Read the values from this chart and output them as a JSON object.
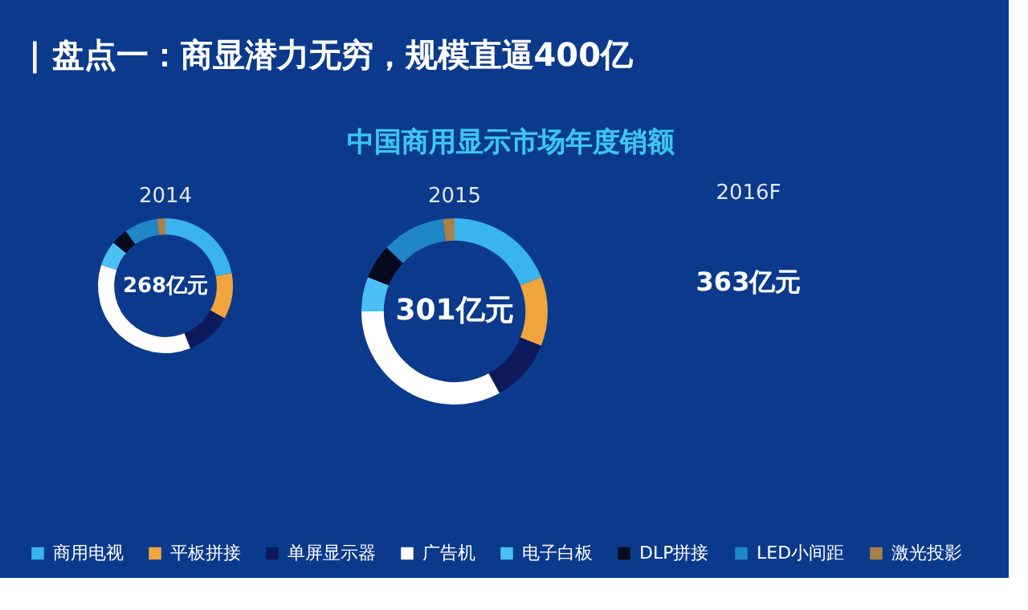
{
  "chart_data": [
    {
      "type": "other",
      "title": "| 盘点一：商显潜力无穷，规模直逼400亿",
      "subtitle": "中国商用显示市场年度销额"
    },
    {
      "type": "donut",
      "annotations": [
        "268亿元",
        "301亿元"
      ],
      "legend": "bottom",
      "categories": [
        "商用电视",
        "平板拼接",
        "单屏显示器",
        "广告机",
        "电子白板",
        "DLP拼接",
        "LED小间距",
        "激光投影"
      ],
      "colors": [
        "#3ab4ee",
        "#f0a43c",
        "#0e1a5c",
        "#ffffff",
        "#4cc0f4",
        "#050a1e",
        "#1f86c8",
        "#a8804a"
      ],
      "series": [
        {
          "name": "2014",
          "values": [
            22,
            11,
            11,
            36,
            6,
            4,
            8,
            2
          ]
        },
        {
          "name": "2015",
          "values": [
            19,
            12,
            11,
            33,
            6,
            6,
            11,
            2
          ]
        }
      ]
    },
    {
      "type": "other",
      "title": "2016F",
      "annotations": [
        "363亿元"
      ]
    }
  ]
}
